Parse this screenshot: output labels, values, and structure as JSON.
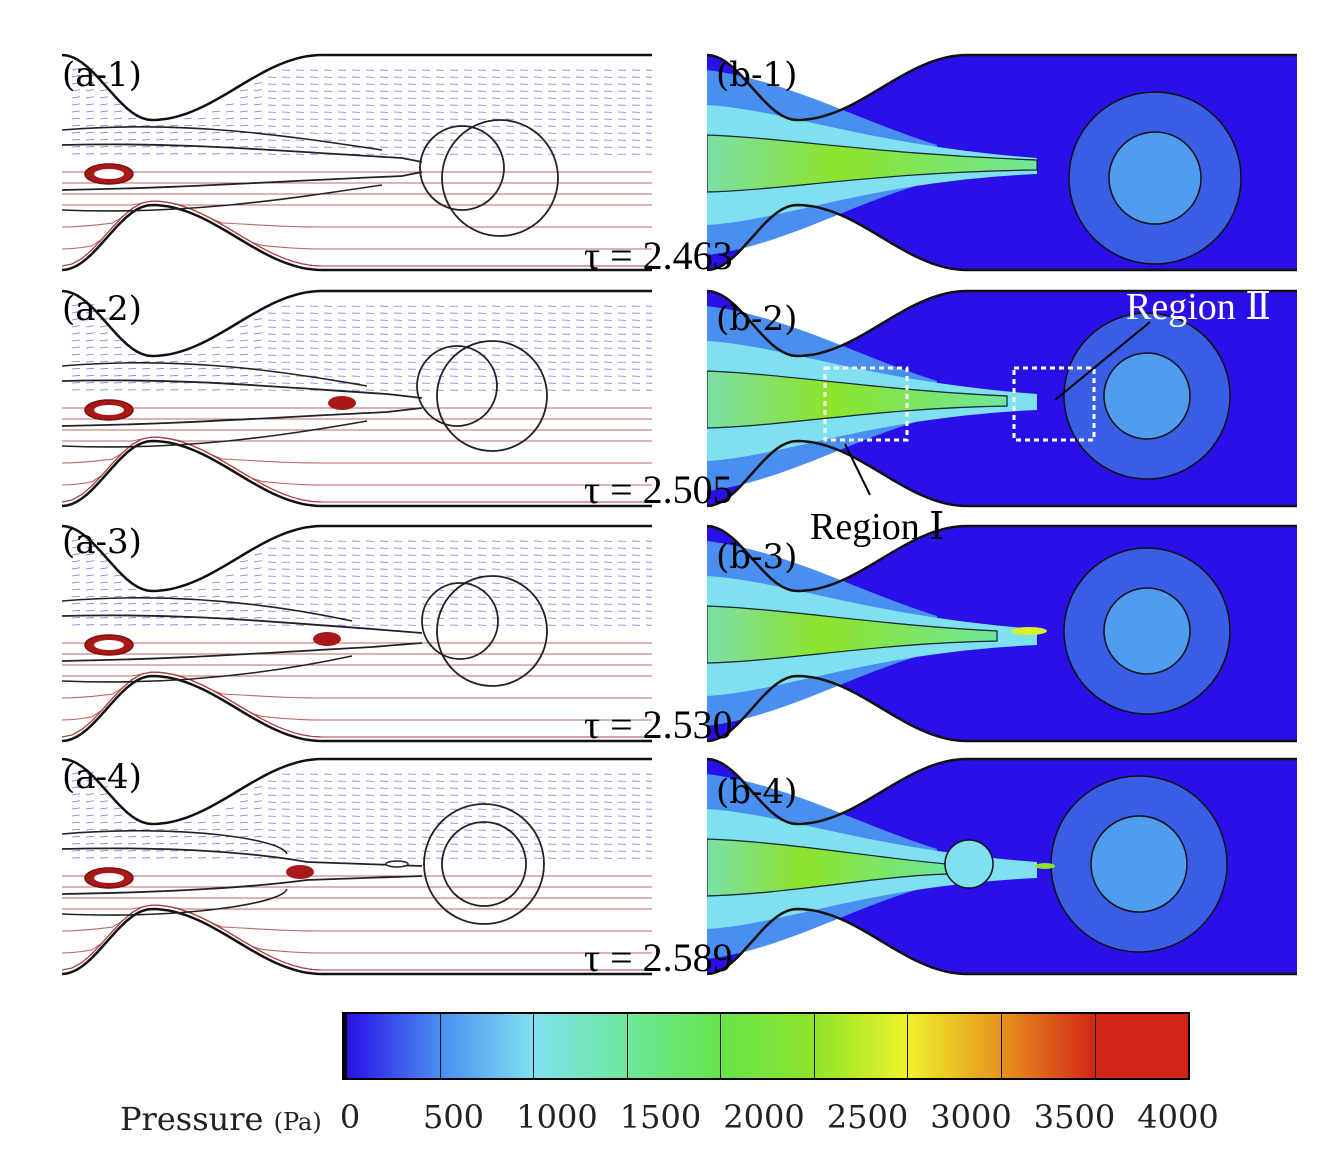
{
  "panels_left": [
    {
      "label": "(a-1)",
      "tau": "τ = 2.463"
    },
    {
      "label": "(a-2)",
      "tau": "τ = 2.505"
    },
    {
      "label": "(a-3)",
      "tau": "τ = 2.530"
    },
    {
      "label": "(a-4)",
      "tau": "τ = 2.589"
    }
  ],
  "panels_right": [
    {
      "label": "(b-1)"
    },
    {
      "label": "(b-2)"
    },
    {
      "label": "(b-3)"
    },
    {
      "label": "(b-4)"
    }
  ],
  "regions": {
    "region_1": "Region Ⅰ",
    "region_2": "Region Ⅱ"
  },
  "colorbar": {
    "title": "Pressure",
    "unit": "(Pa)",
    "ticks": [
      "0",
      "500",
      "1000",
      "1500",
      "2000",
      "2500",
      "3000",
      "3500",
      "4000"
    ],
    "min": 0,
    "max": 4000,
    "colors": [
      "#2a10e8",
      "#4a8ff0",
      "#7fe0f0",
      "#6ee89a",
      "#66e34a",
      "#8ee42a",
      "#eef22a",
      "#e8921e",
      "#d22616"
    ]
  }
}
